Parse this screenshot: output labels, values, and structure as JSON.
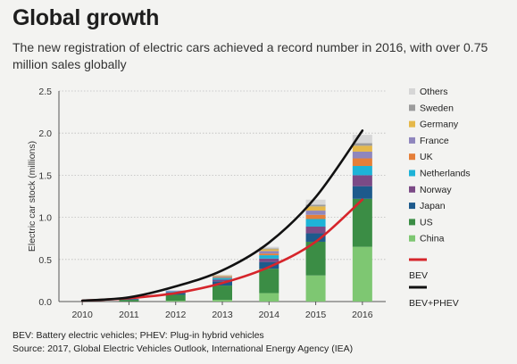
{
  "header": {
    "title": "Global growth",
    "subtitle": "The new registration of electric cars achieved a record number in 2016, with over 0.75 million sales globally"
  },
  "chart_data": {
    "type": "bar",
    "ylabel": "Electric car stock (millions)",
    "ylim": [
      0,
      2.5
    ],
    "yticks": [
      "0.0",
      "0.5",
      "1.0",
      "1.5",
      "2.0",
      "2.5"
    ],
    "categories": [
      "2010",
      "2011",
      "2012",
      "2013",
      "2014",
      "2015",
      "2016"
    ],
    "stack_series": [
      {
        "name": "China",
        "color": "#7ec772",
        "values": [
          0.0,
          0.0,
          0.01,
          0.02,
          0.1,
          0.31,
          0.65
        ]
      },
      {
        "name": "US",
        "color": "#3b8d45",
        "values": [
          0.0,
          0.02,
          0.07,
          0.17,
          0.29,
          0.4,
          0.57
        ]
      },
      {
        "name": "Japan",
        "color": "#1d5a8c",
        "values": [
          0.0,
          0.01,
          0.02,
          0.05,
          0.08,
          0.1,
          0.15
        ]
      },
      {
        "name": "Norway",
        "color": "#7b4a86",
        "values": [
          0.0,
          0.0,
          0.01,
          0.02,
          0.04,
          0.08,
          0.13
        ]
      },
      {
        "name": "Netherlands",
        "color": "#1eb3d7",
        "values": [
          0.0,
          0.0,
          0.01,
          0.02,
          0.04,
          0.09,
          0.11
        ]
      },
      {
        "name": "UK",
        "color": "#e57f39",
        "values": [
          0.0,
          0.0,
          0.0,
          0.01,
          0.02,
          0.05,
          0.09
        ]
      },
      {
        "name": "France",
        "color": "#8f86bd",
        "values": [
          0.0,
          0.0,
          0.01,
          0.01,
          0.03,
          0.05,
          0.08
        ]
      },
      {
        "name": "Germany",
        "color": "#e5b84a",
        "values": [
          0.0,
          0.0,
          0.0,
          0.01,
          0.02,
          0.05,
          0.07
        ]
      },
      {
        "name": "Sweden",
        "color": "#9c9c9c",
        "values": [
          0.0,
          0.0,
          0.0,
          0.0,
          0.01,
          0.02,
          0.03
        ]
      },
      {
        "name": "Others",
        "color": "#d6d6d6",
        "values": [
          0.0,
          0.0,
          0.0,
          0.01,
          0.02,
          0.06,
          0.1
        ]
      }
    ],
    "line_series": [
      {
        "name": "BEV",
        "color": "#d6252b",
        "values": [
          0.01,
          0.04,
          0.1,
          0.22,
          0.41,
          0.71,
          1.21
        ]
      },
      {
        "name": "BEV+PHEV",
        "color": "#111111",
        "values": [
          0.01,
          0.05,
          0.18,
          0.37,
          0.7,
          1.24,
          2.03
        ]
      }
    ],
    "grid": true,
    "legend_position": "right"
  },
  "footer": {
    "note": "BEV: Battery electric vehicles; PHEV: Plug-in hybrid vehicles",
    "source": "Source: 2017, Global Electric Vehicles Outlook, International Energy Agency (IEA)"
  }
}
